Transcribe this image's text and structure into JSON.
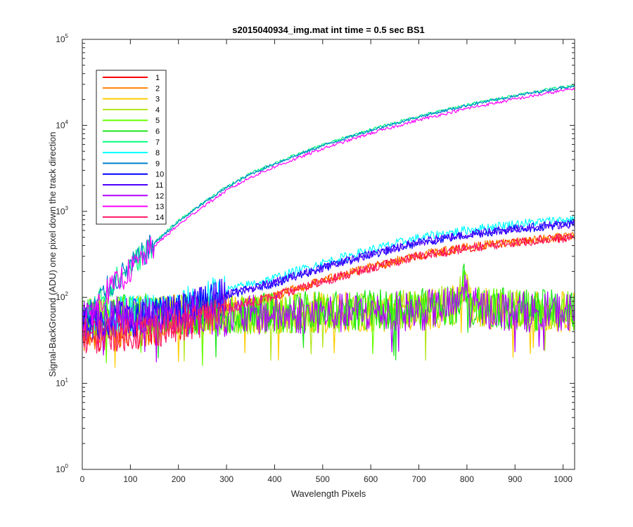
{
  "chart_data": {
    "type": "line",
    "title": "s2015040934_img.mat int time = 0.5 sec   BS1",
    "xlabel": "Wavelength Pixels",
    "ylabel": "Signal-BackGround (ADU) one pixel down the track direction",
    "xlim": [
      0,
      1024
    ],
    "ylim": [
      1,
      100000
    ],
    "yscale": "log",
    "x_ticks": [
      "0",
      "100",
      "200",
      "300",
      "400",
      "500",
      "600",
      "700",
      "800",
      "900",
      "1000"
    ],
    "y_ticks": [
      {
        "base": "10",
        "exp": "0"
      },
      {
        "base": "10",
        "exp": "1"
      },
      {
        "base": "10",
        "exp": "2"
      },
      {
        "base": "10",
        "exp": "3"
      },
      {
        "base": "10",
        "exp": "4"
      },
      {
        "base": "10",
        "exp": "5"
      }
    ],
    "grid": false,
    "legend_position": "top-left",
    "groups": [
      {
        "name": "high",
        "anchors": [
          [
            0,
            50
          ],
          [
            50,
            120
          ],
          [
            100,
            220
          ],
          [
            150,
            420
          ],
          [
            200,
            740
          ],
          [
            250,
            1200
          ],
          [
            300,
            1850
          ],
          [
            350,
            2650
          ],
          [
            400,
            3500
          ],
          [
            500,
            5700
          ],
          [
            600,
            8600
          ],
          [
            700,
            12300
          ],
          [
            800,
            16700
          ],
          [
            900,
            21500
          ],
          [
            1000,
            27000
          ],
          [
            1024,
            28500
          ]
        ]
      },
      {
        "name": "mid",
        "anchors": [
          [
            0,
            55
          ],
          [
            100,
            62
          ],
          [
            200,
            72
          ],
          [
            250,
            90
          ],
          [
            300,
            115
          ],
          [
            400,
            160
          ],
          [
            500,
            240
          ],
          [
            600,
            340
          ],
          [
            700,
            470
          ],
          [
            800,
            580
          ],
          [
            900,
            680
          ],
          [
            1000,
            760
          ],
          [
            1024,
            775
          ]
        ]
      },
      {
        "name": "low",
        "anchors": [
          [
            0,
            60
          ],
          [
            200,
            62
          ],
          [
            300,
            62
          ],
          [
            400,
            64
          ],
          [
            500,
            66
          ],
          [
            600,
            68
          ],
          [
            700,
            70
          ],
          [
            780,
            82
          ],
          [
            795,
            150
          ],
          [
            805,
            78
          ],
          [
            900,
            70
          ],
          [
            1024,
            68
          ]
        ]
      }
    ],
    "series": [
      {
        "name": "1",
        "color": "#ff0000",
        "group": "mid",
        "offset": 0.65
      },
      {
        "name": "2",
        "color": "#ff7f00",
        "group": "mid",
        "offset": 0.66
      },
      {
        "name": "3",
        "color": "#ffcc00",
        "group": "low",
        "offset": 1.0
      },
      {
        "name": "4",
        "color": "#b2e61a",
        "group": "low",
        "offset": 1.02
      },
      {
        "name": "5",
        "color": "#66ff00",
        "group": "low",
        "offset": 1.0
      },
      {
        "name": "6",
        "color": "#19e619",
        "group": "low",
        "offset": 1.04
      },
      {
        "name": "7",
        "color": "#00ff80",
        "group": "high",
        "offset": 1.04
      },
      {
        "name": "8",
        "color": "#00ffff",
        "group": "mid",
        "offset": 1.05
      },
      {
        "name": "9",
        "color": "#0080cc",
        "group": "high",
        "offset": 1.02
      },
      {
        "name": "10",
        "color": "#0000ff",
        "group": "mid",
        "offset": 0.92
      },
      {
        "name": "11",
        "color": "#4d00ff",
        "group": "mid",
        "offset": 0.93
      },
      {
        "name": "12",
        "color": "#b200ff",
        "group": "low",
        "offset": 0.98
      },
      {
        "name": "13",
        "color": "#ff00ff",
        "group": "high",
        "offset": 0.94
      },
      {
        "name": "14",
        "color": "#ff1a66",
        "group": "mid",
        "offset": 0.64
      }
    ]
  }
}
